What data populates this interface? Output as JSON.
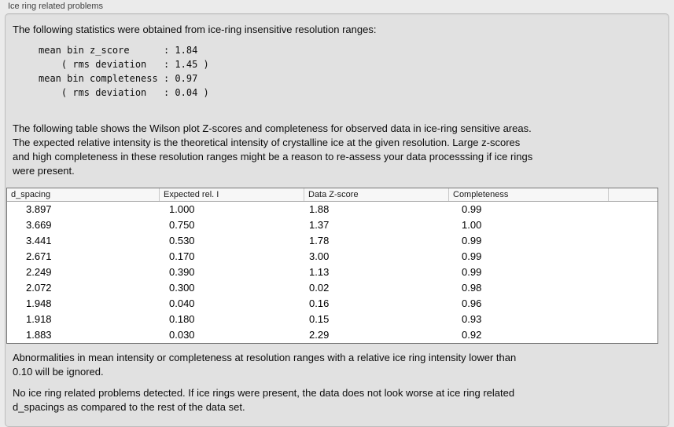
{
  "panel": {
    "title": "Ice ring related problems"
  },
  "intro_text": "The following statistics were obtained from ice-ring insensitive resolution ranges:",
  "stats_block": {
    "lines": [
      "mean bin z_score      : 1.84",
      "    ( rms deviation   : 1.45 )",
      "mean bin completeness : 0.97",
      "    ( rms deviation   : 0.04 )"
    ],
    "mean_bin_z_score": "1.84",
    "z_score_rms_deviation": "1.45",
    "mean_bin_completeness": "0.97",
    "completeness_rms_deviation": "0.04"
  },
  "table_description_lines": [
    "The following table shows the Wilson plot Z-scores and completeness for observed data in ice-ring sensitive areas.",
    "The expected relative intensity is the theoretical intensity of crystalline ice at the given resolution. Large z-scores",
    "and high completeness in these resolution ranges might be a reason to re-assess your data processsing if ice rings",
    "were present."
  ],
  "table": {
    "headers": [
      "d_spacing",
      "Expected rel. I",
      "Data Z-score",
      "Completeness"
    ],
    "rows": [
      [
        "3.897",
        "1.000",
        "1.88",
        "0.99"
      ],
      [
        "3.669",
        "0.750",
        "1.37",
        "1.00"
      ],
      [
        "3.441",
        "0.530",
        "1.78",
        "0.99"
      ],
      [
        "2.671",
        "0.170",
        "3.00",
        "0.99"
      ],
      [
        "2.249",
        "0.390",
        "1.13",
        "0.99"
      ],
      [
        "2.072",
        "0.300",
        "0.02",
        "0.98"
      ],
      [
        "1.948",
        "0.040",
        "0.16",
        "0.96"
      ],
      [
        "1.918",
        "0.180",
        "0.15",
        "0.93"
      ],
      [
        "1.883",
        "0.030",
        "2.29",
        "0.92"
      ]
    ]
  },
  "ignore_note_lines": [
    "Abnormalities in mean intensity or completeness at resolution ranges with a relative ice ring intensity lower than",
    "0.10 will be ignored."
  ],
  "conclusion_lines": [
    "No ice ring related problems detected. If ice rings were present, the data does not look worse at ice ring related",
    "d_spacings as compared to the rest of the data set."
  ]
}
